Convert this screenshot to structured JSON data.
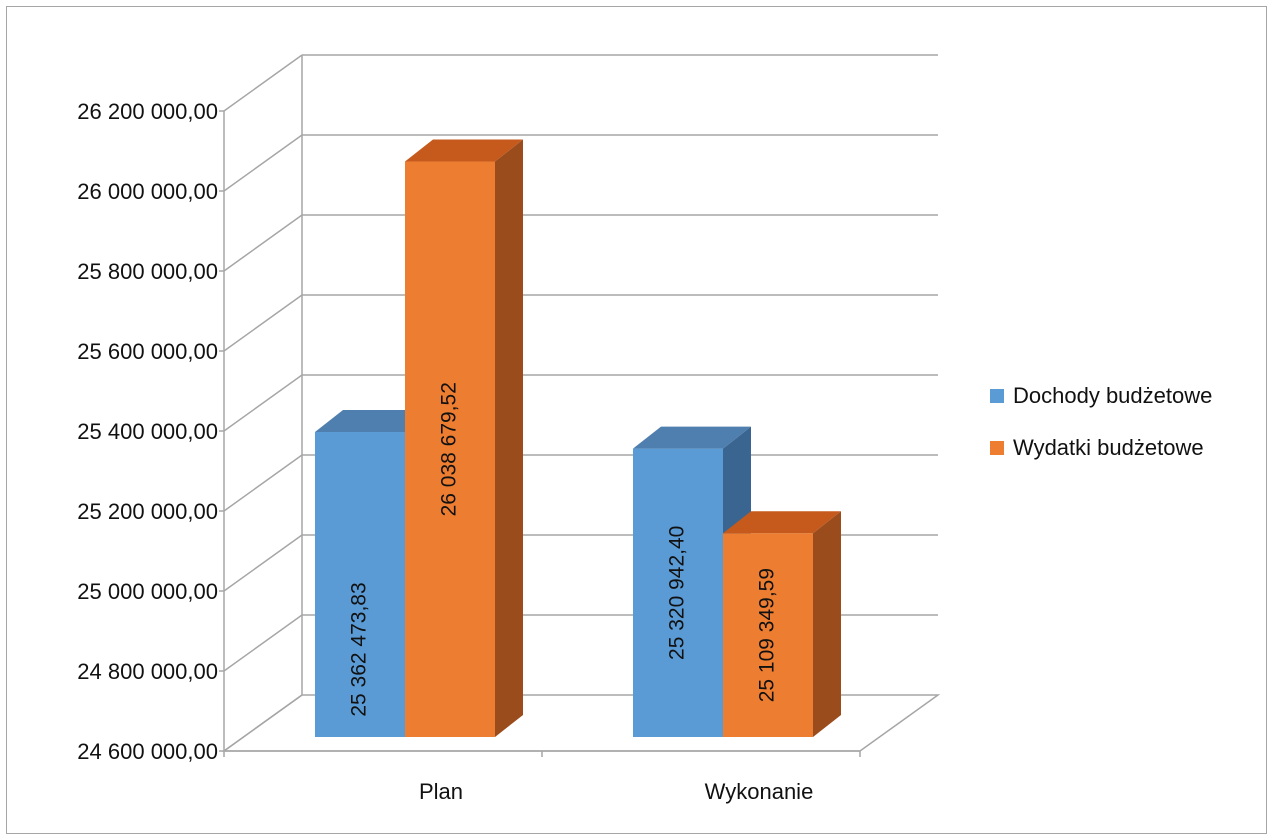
{
  "chart_data": {
    "type": "bar",
    "categories": [
      "Plan",
      "Wykonanie"
    ],
    "series": [
      {
        "name": "Dochody budżetowe",
        "values": [
          25362473.83,
          25320942.4
        ],
        "labels": [
          "25 362 473,83",
          "25 320 942,40"
        ],
        "color": "#5b9bd5",
        "color_top": "#4f7fae",
        "color_side": "#3a6591"
      },
      {
        "name": "Wydatki budżetowe",
        "values": [
          26038679.52,
          25109349.59
        ],
        "labels": [
          "26 038 679,52",
          "25 109 349,59"
        ],
        "color": "#ed7d31",
        "color_top": "#c55a1c",
        "color_side": "#9b4c1c"
      }
    ],
    "yticks": [
      "24 600 000,00",
      "24 800 000,00",
      "25 000 000,00",
      "25 200 000,00",
      "25 400 000,00",
      "25 600 000,00",
      "25 800 000,00",
      "26 000 000,00",
      "26 200 000,00"
    ],
    "ylim": [
      24600000,
      26200000
    ],
    "ystep": 200000,
    "grid": true,
    "legend": "right",
    "title": "",
    "xlabel": "",
    "ylabel": ""
  }
}
